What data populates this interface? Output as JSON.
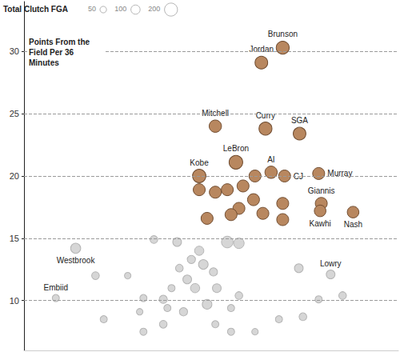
{
  "chart_data": {
    "type": "scatter",
    "y_label": "Points From the Field Per 36 Minutes",
    "size_legend_title": "Total Clutch FGA",
    "size_legend_values": [
      50,
      100,
      200
    ],
    "xlim": [
      0,
      100
    ],
    "ylim": [
      6,
      34
    ],
    "yticks": [
      10,
      15,
      20,
      25,
      30
    ],
    "grid": true,
    "tick_labels": "y",
    "series": [
      {
        "color": "#d6d6d6",
        "x": [
          13.8,
          8.5,
          81.9,
          34.7,
          40.9,
          54.3,
          57.4,
          46.8,
          47.9,
          50.6,
          41.5,
          43.6,
          45.7,
          39.4,
          37.2,
          31.9,
          30.9,
          31.9,
          37.2,
          42.6,
          48.9,
          51.5,
          55.3,
          57.4,
          61.7,
          55.3,
          68.1,
          73.4,
          74.5,
          78.7,
          85.1,
          21.3,
          19.1,
          27.7,
          51.1,
          44.7,
          38.3
        ],
        "values": [
          14.2,
          10.2,
          12.1,
          14.9,
          14.7,
          14.7,
          14.6,
          14.0,
          12.9,
          12.3,
          12.6,
          11.7,
          11.0,
          11.0,
          10.1,
          10.2,
          9.1,
          7.5,
          8.1,
          9.1,
          9.7,
          11.0,
          9.4,
          10.4,
          7.5,
          7.5,
          8.5,
          12.6,
          8.7,
          10.1,
          10.4,
          8.5,
          12.0,
          12.0,
          8.1,
          13.3,
          9.4
        ],
        "sizes": [
          120,
          60,
          90,
          70,
          90,
          160,
          130,
          100,
          110,
          80,
          70,
          90,
          100,
          60,
          80,
          60,
          50,
          60,
          70,
          80,
          110,
          90,
          60,
          70,
          50,
          60,
          60,
          90,
          70,
          60,
          70,
          60,
          70,
          50,
          60,
          80,
          60
        ],
        "labels": [
          "Westbrook",
          "Embiid",
          "Lowry",
          null,
          null,
          null,
          null,
          null,
          null,
          null,
          null,
          null,
          null,
          null,
          null,
          null,
          null,
          null,
          null,
          null,
          null,
          null,
          null,
          null,
          null,
          null,
          null,
          null,
          null,
          null,
          null,
          null,
          null,
          null,
          null,
          null,
          null
        ]
      },
      {
        "color": "#b8875f",
        "x": [
          69.1,
          63.4,
          51.1,
          64.5,
          73.6,
          56.6,
          46.8,
          66.0,
          69.6,
          78.7,
          79.4,
          79.1,
          87.9,
          51.1,
          54.3,
          61.7,
          61.3,
          57.4,
          48.9,
          63.8,
          69.1,
          69.1,
          46.8,
          55.3,
          58.5
        ],
        "values": [
          30.3,
          29.1,
          24.0,
          23.8,
          23.4,
          21.1,
          20.0,
          20.3,
          20.0,
          20.2,
          17.8,
          17.2,
          17.1,
          18.7,
          18.9,
          20.0,
          18.1,
          17.4,
          16.6,
          17.0,
          17.8,
          16.5,
          18.9,
          16.9,
          19.2
        ],
        "sizes": [
          200,
          190,
          180,
          200,
          190,
          220,
          210,
          180,
          170,
          170,
          170,
          160,
          160,
          170,
          170,
          170,
          170,
          170,
          170,
          170,
          170,
          170,
          170,
          170,
          170
        ],
        "labels": [
          "Brunson",
          "Jordan",
          "Mitchell",
          "Curry",
          "SGA",
          "LeBron",
          "Kobe",
          "AI",
          "CJ",
          "Murray",
          "Giannis",
          "Kawhi",
          "Nash",
          null,
          null,
          null,
          null,
          null,
          null,
          null,
          null,
          null,
          null,
          null,
          null
        ]
      }
    ]
  }
}
